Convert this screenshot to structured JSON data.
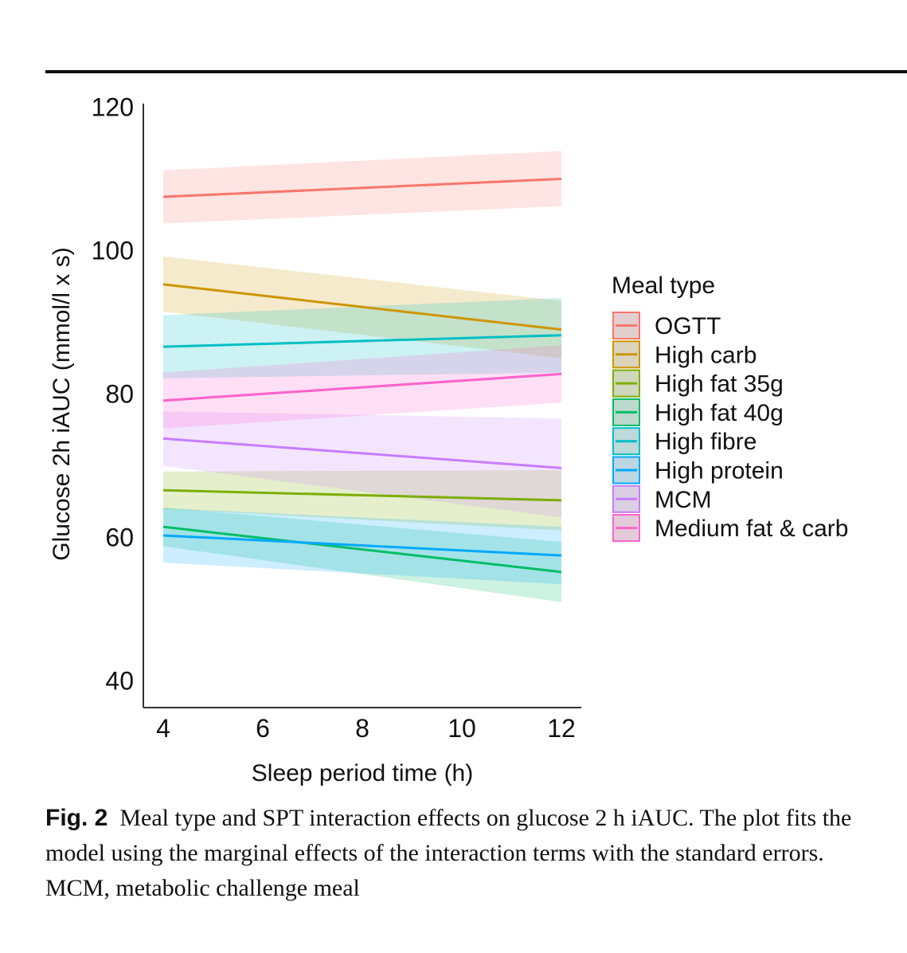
{
  "caption": {
    "label": "Fig. 2",
    "text": "Meal type and SPT interaction effects on glucose 2 h iAUC. The plot fits the model using the marginal effects of the interaction terms with the standard errors. MCM, metabolic challenge meal"
  },
  "chart_data": {
    "type": "line",
    "title": "",
    "xlabel": "Sleep period time (h)",
    "ylabel": "Glucose 2h iAUC (mmol/l x s)",
    "xlim": [
      3.6,
      12.4
    ],
    "ylim": [
      36.3,
      120.5
    ],
    "x_ticks": [
      4,
      6,
      8,
      10,
      12
    ],
    "y_ticks": [
      40,
      60,
      80,
      100,
      120
    ],
    "legend_title": "Meal type",
    "legend_position": "right",
    "series": [
      {
        "name": "OGTT",
        "color": "#F8766D",
        "x": [
          4,
          12
        ],
        "y": [
          107.5,
          110.0
        ],
        "lower": [
          103.8,
          106.2
        ],
        "upper": [
          111.2,
          113.9
        ]
      },
      {
        "name": "High carb",
        "color": "#CD9600",
        "x": [
          4,
          12
        ],
        "y": [
          95.3,
          89.0
        ],
        "lower": [
          91.5,
          85.0
        ],
        "upper": [
          99.2,
          93.0
        ]
      },
      {
        "name": "High fat 35g",
        "color": "#7CAE00",
        "x": [
          4,
          12
        ],
        "y": [
          66.6,
          65.2
        ],
        "lower": [
          64.0,
          61.0
        ],
        "upper": [
          69.2,
          69.4
        ]
      },
      {
        "name": "High fat 40g",
        "color": "#00BE67",
        "x": [
          4,
          12
        ],
        "y": [
          61.5,
          55.2
        ],
        "lower": [
          58.8,
          51.0
        ],
        "upper": [
          64.2,
          59.4
        ]
      },
      {
        "name": "High fibre",
        "color": "#00BFC4",
        "x": [
          4,
          12
        ],
        "y": [
          86.6,
          88.2
        ],
        "lower": [
          82.2,
          83.0
        ],
        "upper": [
          91.0,
          93.4
        ]
      },
      {
        "name": "High protein",
        "color": "#00A9FF",
        "x": [
          4,
          12
        ],
        "y": [
          60.3,
          57.5
        ],
        "lower": [
          56.5,
          53.5
        ],
        "upper": [
          64.1,
          61.5
        ]
      },
      {
        "name": "MCM",
        "color": "#C77CFF",
        "x": [
          4,
          12
        ],
        "y": [
          73.8,
          69.7
        ],
        "lower": [
          70.0,
          62.8
        ],
        "upper": [
          77.6,
          76.6
        ]
      },
      {
        "name": "Medium fat & carb",
        "color": "#FF61CC",
        "x": [
          4,
          12
        ],
        "y": [
          79.1,
          82.8
        ],
        "lower": [
          75.2,
          78.8
        ],
        "upper": [
          83.0,
          86.8
        ]
      }
    ]
  }
}
